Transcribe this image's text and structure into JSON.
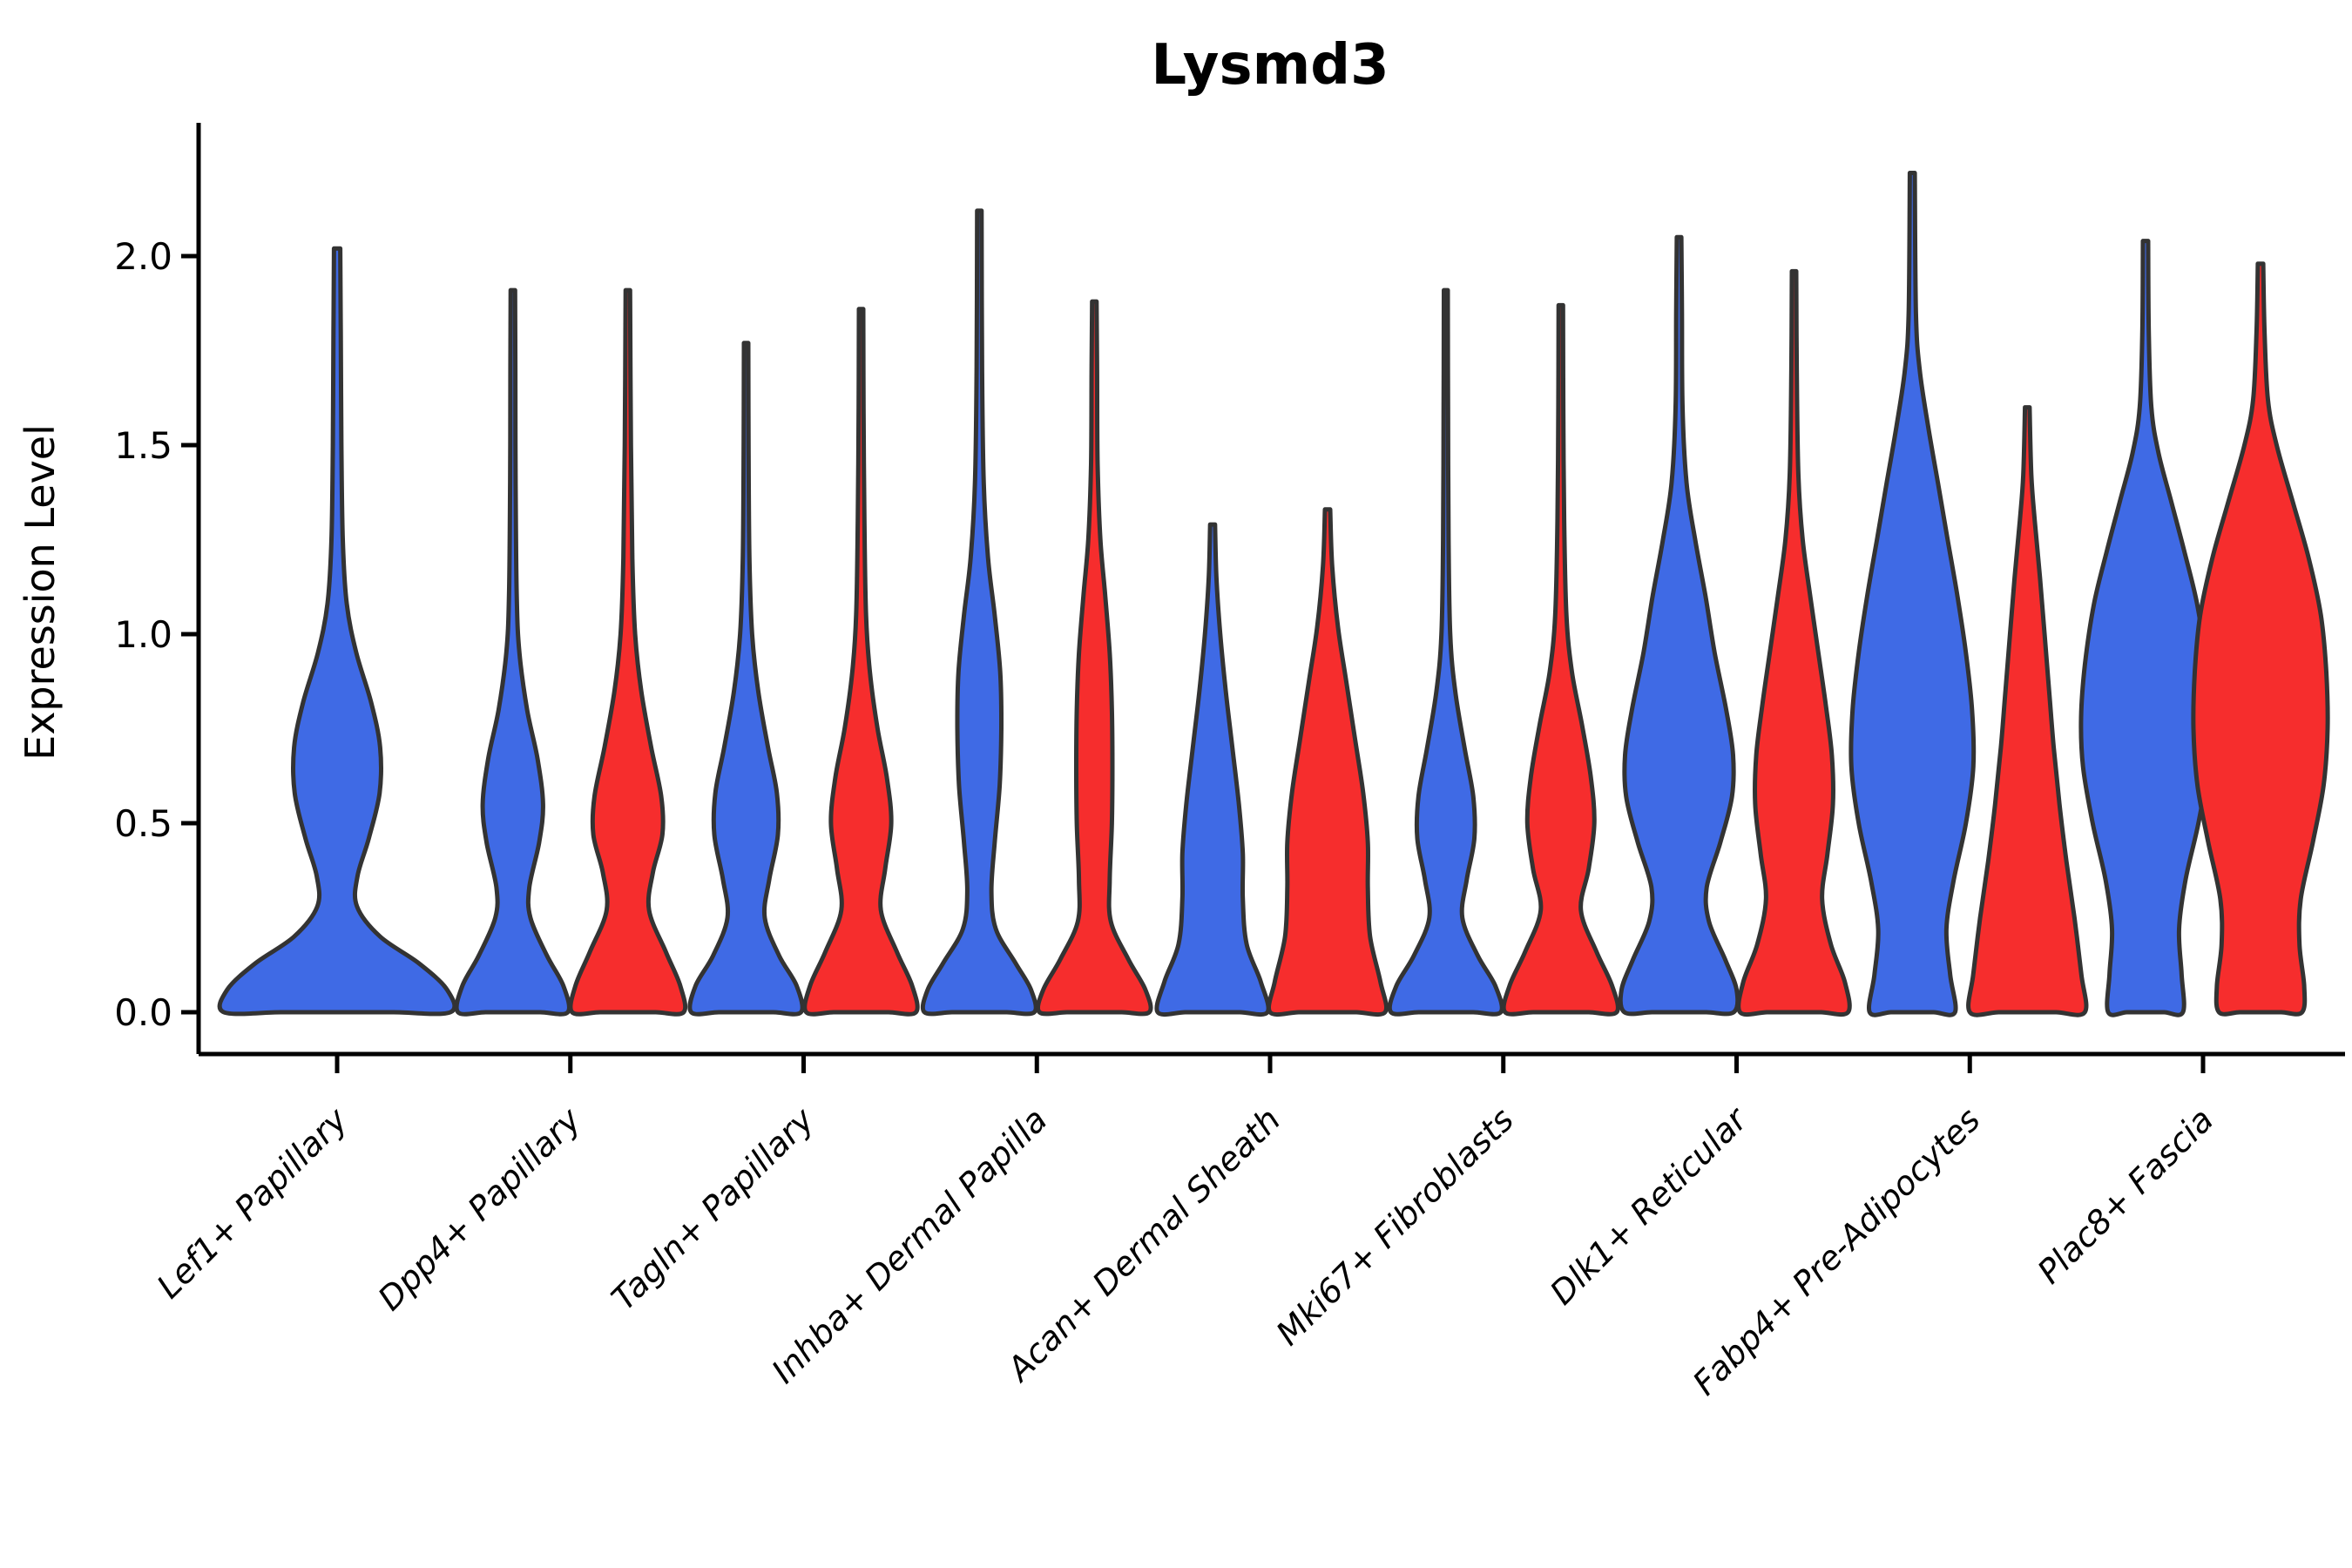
{
  "page": {
    "background": "#ffffff"
  },
  "chart_data": {
    "type": "violin",
    "title": "Lysmd3",
    "ylabel": "Expression Level",
    "xlabel": "",
    "grid": false,
    "legend_position": "none",
    "ytick_labels": [
      "0.0",
      "0.5",
      "1.0",
      "1.5",
      "2.0"
    ],
    "ytick_values": [
      0.0,
      0.5,
      1.0,
      1.5,
      2.0
    ],
    "ylim": [
      -0.11,
      2.35
    ],
    "categories": [
      "Lef1+ Papillary",
      "Dpp4+ Papillary",
      "Tagln+ Papillary",
      "Inhba+ Dermal Papilla",
      "Acan+ Dermal Sheath",
      "Mki67+ Fibroblasts",
      "Dlk1+ Reticular",
      "Fabp4+ Pre-Adipocytes",
      "Plac8+ Fascia"
    ],
    "colors": {
      "group_blue": "#3F6AE5",
      "group_red": "#F62D2D",
      "outline": "#333333",
      "axis": "#000000"
    },
    "violins": [
      {
        "category_index": 0,
        "category": "Lef1+ Papillary",
        "color_key": "group_blue",
        "side": "center",
        "half_width": 130,
        "max_expression": 2.02,
        "density_profile": [
          [
            0,
            1.0
          ],
          [
            0.06,
            0.97
          ],
          [
            0.13,
            0.72
          ],
          [
            0.2,
            0.38
          ],
          [
            0.28,
            0.175
          ],
          [
            0.36,
            0.18
          ],
          [
            0.46,
            0.28
          ],
          [
            0.58,
            0.375
          ],
          [
            0.7,
            0.38
          ],
          [
            0.82,
            0.3
          ],
          [
            0.95,
            0.17
          ],
          [
            1.08,
            0.085
          ],
          [
            1.25,
            0.05
          ],
          [
            1.5,
            0.038
          ],
          [
            1.8,
            0.032
          ],
          [
            2.02,
            0.028
          ]
        ]
      },
      {
        "category_index": 1,
        "category": "Dpp4+ Papillary",
        "color_key": "group_blue",
        "side": "left",
        "half_width": 63,
        "max_expression": 1.91,
        "density_profile": [
          [
            0,
            1.0
          ],
          [
            0.07,
            0.92
          ],
          [
            0.15,
            0.62
          ],
          [
            0.25,
            0.32
          ],
          [
            0.33,
            0.3
          ],
          [
            0.45,
            0.48
          ],
          [
            0.55,
            0.55
          ],
          [
            0.67,
            0.45
          ],
          [
            0.8,
            0.26
          ],
          [
            0.95,
            0.12
          ],
          [
            1.1,
            0.07
          ],
          [
            1.4,
            0.05
          ],
          [
            1.7,
            0.045
          ],
          [
            1.91,
            0.04
          ]
        ]
      },
      {
        "category_index": 1,
        "category": "Dpp4+ Papillary",
        "color_key": "group_red",
        "side": "right",
        "half_width": 64,
        "max_expression": 1.91,
        "density_profile": [
          [
            0,
            1.0
          ],
          [
            0.07,
            0.94
          ],
          [
            0.16,
            0.68
          ],
          [
            0.27,
            0.38
          ],
          [
            0.37,
            0.45
          ],
          [
            0.47,
            0.62
          ],
          [
            0.57,
            0.6
          ],
          [
            0.7,
            0.42
          ],
          [
            0.85,
            0.24
          ],
          [
            1.0,
            0.13
          ],
          [
            1.2,
            0.08
          ],
          [
            1.5,
            0.055
          ],
          [
            1.91,
            0.04
          ]
        ]
      },
      {
        "category_index": 2,
        "category": "Tagln+ Papillary",
        "color_key": "group_blue",
        "side": "left",
        "half_width": 63,
        "max_expression": 1.77,
        "density_profile": [
          [
            0,
            1.0
          ],
          [
            0.07,
            0.92
          ],
          [
            0.15,
            0.6
          ],
          [
            0.25,
            0.34
          ],
          [
            0.35,
            0.42
          ],
          [
            0.47,
            0.58
          ],
          [
            0.58,
            0.56
          ],
          [
            0.7,
            0.4
          ],
          [
            0.85,
            0.22
          ],
          [
            1.0,
            0.11
          ],
          [
            1.2,
            0.06
          ],
          [
            1.5,
            0.045
          ],
          [
            1.77,
            0.04
          ]
        ]
      },
      {
        "category_index": 2,
        "category": "Tagln+ Papillary",
        "color_key": "group_red",
        "side": "right",
        "half_width": 63,
        "max_expression": 1.86,
        "density_profile": [
          [
            0,
            1.0
          ],
          [
            0.07,
            0.93
          ],
          [
            0.16,
            0.65
          ],
          [
            0.27,
            0.36
          ],
          [
            0.38,
            0.44
          ],
          [
            0.5,
            0.55
          ],
          [
            0.62,
            0.47
          ],
          [
            0.75,
            0.3
          ],
          [
            0.9,
            0.16
          ],
          [
            1.05,
            0.09
          ],
          [
            1.3,
            0.06
          ],
          [
            1.6,
            0.045
          ],
          [
            1.86,
            0.04
          ]
        ]
      },
      {
        "category_index": 3,
        "category": "Inhba+ Dermal Papilla",
        "color_key": "group_blue",
        "side": "left",
        "half_width": 63,
        "max_expression": 2.12,
        "density_profile": [
          [
            0,
            1.0
          ],
          [
            0.06,
            0.94
          ],
          [
            0.13,
            0.66
          ],
          [
            0.22,
            0.3
          ],
          [
            0.32,
            0.22
          ],
          [
            0.45,
            0.28
          ],
          [
            0.6,
            0.37
          ],
          [
            0.75,
            0.4
          ],
          [
            0.9,
            0.38
          ],
          [
            1.05,
            0.28
          ],
          [
            1.2,
            0.16
          ],
          [
            1.4,
            0.08
          ],
          [
            1.7,
            0.05
          ],
          [
            2.12,
            0.04
          ]
        ]
      },
      {
        "category_index": 3,
        "category": "Inhba+ Dermal Papilla",
        "color_key": "group_red",
        "side": "right",
        "half_width": 63,
        "max_expression": 1.88,
        "density_profile": [
          [
            0,
            1.0
          ],
          [
            0.06,
            0.93
          ],
          [
            0.14,
            0.62
          ],
          [
            0.24,
            0.3
          ],
          [
            0.35,
            0.28
          ],
          [
            0.5,
            0.32
          ],
          [
            0.65,
            0.33
          ],
          [
            0.8,
            0.32
          ],
          [
            0.95,
            0.28
          ],
          [
            1.1,
            0.2
          ],
          [
            1.25,
            0.11
          ],
          [
            1.45,
            0.06
          ],
          [
            1.7,
            0.05
          ],
          [
            1.88,
            0.04
          ]
        ]
      },
      {
        "category_index": 4,
        "category": "Acan+ Dermal Sheath",
        "color_key": "group_blue",
        "side": "left",
        "half_width": 63,
        "max_expression": 1.29,
        "density_profile": [
          [
            0,
            1.0
          ],
          [
            0.08,
            0.88
          ],
          [
            0.18,
            0.62
          ],
          [
            0.3,
            0.55
          ],
          [
            0.42,
            0.55
          ],
          [
            0.55,
            0.48
          ],
          [
            0.7,
            0.36
          ],
          [
            0.85,
            0.24
          ],
          [
            1.0,
            0.14
          ],
          [
            1.15,
            0.07
          ],
          [
            1.29,
            0.045
          ]
        ]
      },
      {
        "category_index": 4,
        "category": "Acan+ Dermal Sheath",
        "color_key": "group_red",
        "side": "right",
        "half_width": 66,
        "max_expression": 1.33,
        "density_profile": [
          [
            0,
            1.0
          ],
          [
            0.08,
            0.92
          ],
          [
            0.2,
            0.74
          ],
          [
            0.33,
            0.7
          ],
          [
            0.45,
            0.7
          ],
          [
            0.58,
            0.62
          ],
          [
            0.72,
            0.48
          ],
          [
            0.88,
            0.32
          ],
          [
            1.02,
            0.18
          ],
          [
            1.18,
            0.08
          ],
          [
            1.33,
            0.045
          ]
        ]
      },
      {
        "category_index": 5,
        "category": "Mki67+ Fibroblasts",
        "color_key": "group_blue",
        "side": "left",
        "half_width": 63,
        "max_expression": 1.91,
        "density_profile": [
          [
            0,
            1.0
          ],
          [
            0.07,
            0.9
          ],
          [
            0.15,
            0.58
          ],
          [
            0.25,
            0.3
          ],
          [
            0.35,
            0.38
          ],
          [
            0.46,
            0.52
          ],
          [
            0.57,
            0.5
          ],
          [
            0.7,
            0.34
          ],
          [
            0.85,
            0.17
          ],
          [
            1.0,
            0.08
          ],
          [
            1.25,
            0.05
          ],
          [
            1.6,
            0.04
          ],
          [
            1.91,
            0.035
          ]
        ]
      },
      {
        "category_index": 5,
        "category": "Mki67+ Fibroblasts",
        "color_key": "group_red",
        "side": "right",
        "half_width": 64,
        "max_expression": 1.87,
        "density_profile": [
          [
            0,
            1.0
          ],
          [
            0.07,
            0.92
          ],
          [
            0.16,
            0.64
          ],
          [
            0.27,
            0.36
          ],
          [
            0.38,
            0.5
          ],
          [
            0.5,
            0.6
          ],
          [
            0.62,
            0.54
          ],
          [
            0.76,
            0.38
          ],
          [
            0.9,
            0.2
          ],
          [
            1.05,
            0.1
          ],
          [
            1.3,
            0.06
          ],
          [
            1.6,
            0.045
          ],
          [
            1.87,
            0.04
          ]
        ]
      },
      {
        "category_index": 6,
        "category": "Dlk1+ Reticular",
        "color_key": "group_blue",
        "side": "left",
        "half_width": 66,
        "max_expression": 2.05,
        "density_profile": [
          [
            0,
            0.95
          ],
          [
            0.06,
            1.0
          ],
          [
            0.14,
            0.8
          ],
          [
            0.24,
            0.52
          ],
          [
            0.33,
            0.48
          ],
          [
            0.45,
            0.72
          ],
          [
            0.57,
            0.92
          ],
          [
            0.68,
            0.94
          ],
          [
            0.8,
            0.82
          ],
          [
            0.95,
            0.62
          ],
          [
            1.1,
            0.46
          ],
          [
            1.25,
            0.28
          ],
          [
            1.4,
            0.13
          ],
          [
            1.6,
            0.06
          ],
          [
            1.85,
            0.05
          ],
          [
            2.05,
            0.04
          ]
        ]
      },
      {
        "category_index": 6,
        "category": "Dlk1+ Reticular",
        "color_key": "group_red",
        "side": "right",
        "half_width": 62,
        "max_expression": 1.96,
        "density_profile": [
          [
            0,
            1.0
          ],
          [
            0.08,
            0.94
          ],
          [
            0.18,
            0.68
          ],
          [
            0.3,
            0.52
          ],
          [
            0.42,
            0.62
          ],
          [
            0.55,
            0.72
          ],
          [
            0.68,
            0.7
          ],
          [
            0.82,
            0.58
          ],
          [
            0.96,
            0.44
          ],
          [
            1.1,
            0.3
          ],
          [
            1.25,
            0.16
          ],
          [
            1.42,
            0.08
          ],
          [
            1.7,
            0.05
          ],
          [
            1.96,
            0.04
          ]
        ]
      },
      {
        "category_index": 7,
        "category": "Fabp4+ Pre-Adipocytes",
        "color_key": "group_blue",
        "side": "left",
        "half_width": 70,
        "max_expression": 2.22,
        "density_profile": [
          [
            0,
            0.7
          ],
          [
            0.1,
            0.62
          ],
          [
            0.22,
            0.56
          ],
          [
            0.35,
            0.68
          ],
          [
            0.5,
            0.88
          ],
          [
            0.65,
            1.0
          ],
          [
            0.8,
            0.98
          ],
          [
            0.95,
            0.88
          ],
          [
            1.1,
            0.74
          ],
          [
            1.25,
            0.58
          ],
          [
            1.4,
            0.42
          ],
          [
            1.55,
            0.26
          ],
          [
            1.7,
            0.12
          ],
          [
            1.85,
            0.06
          ],
          [
            2.22,
            0.04
          ]
        ]
      },
      {
        "category_index": 7,
        "category": "Fabp4+ Pre-Adipocytes",
        "color_key": "group_red",
        "side": "right",
        "half_width": 66,
        "max_expression": 1.6,
        "density_profile": [
          [
            0,
            1.0
          ],
          [
            0.1,
            0.94
          ],
          [
            0.25,
            0.82
          ],
          [
            0.4,
            0.68
          ],
          [
            0.55,
            0.56
          ],
          [
            0.7,
            0.46
          ],
          [
            0.85,
            0.38
          ],
          [
            1.0,
            0.3
          ],
          [
            1.15,
            0.22
          ],
          [
            1.3,
            0.13
          ],
          [
            1.42,
            0.07
          ],
          [
            1.6,
            0.04
          ]
        ]
      },
      {
        "category_index": 8,
        "category": "Plac8+ Fascia",
        "color_key": "group_blue",
        "side": "left",
        "half_width": 74,
        "max_expression": 2.04,
        "density_profile": [
          [
            0,
            0.58
          ],
          [
            0.1,
            0.56
          ],
          [
            0.22,
            0.52
          ],
          [
            0.35,
            0.62
          ],
          [
            0.5,
            0.82
          ],
          [
            0.65,
            0.97
          ],
          [
            0.78,
            1.0
          ],
          [
            0.92,
            0.94
          ],
          [
            1.08,
            0.8
          ],
          [
            1.22,
            0.6
          ],
          [
            1.35,
            0.4
          ],
          [
            1.48,
            0.2
          ],
          [
            1.6,
            0.09
          ],
          [
            1.8,
            0.05
          ],
          [
            2.04,
            0.04
          ]
        ]
      },
      {
        "category_index": 8,
        "category": "Plac8+ Fascia",
        "color_key": "group_red",
        "side": "right",
        "half_width": 77,
        "max_expression": 1.98,
        "density_profile": [
          [
            0,
            0.62
          ],
          [
            0.07,
            0.65
          ],
          [
            0.18,
            0.58
          ],
          [
            0.3,
            0.6
          ],
          [
            0.45,
            0.78
          ],
          [
            0.6,
            0.94
          ],
          [
            0.75,
            1.0
          ],
          [
            0.9,
            0.98
          ],
          [
            1.05,
            0.9
          ],
          [
            1.2,
            0.72
          ],
          [
            1.35,
            0.48
          ],
          [
            1.5,
            0.24
          ],
          [
            1.62,
            0.11
          ],
          [
            1.8,
            0.06
          ],
          [
            1.98,
            0.04
          ]
        ]
      }
    ]
  }
}
